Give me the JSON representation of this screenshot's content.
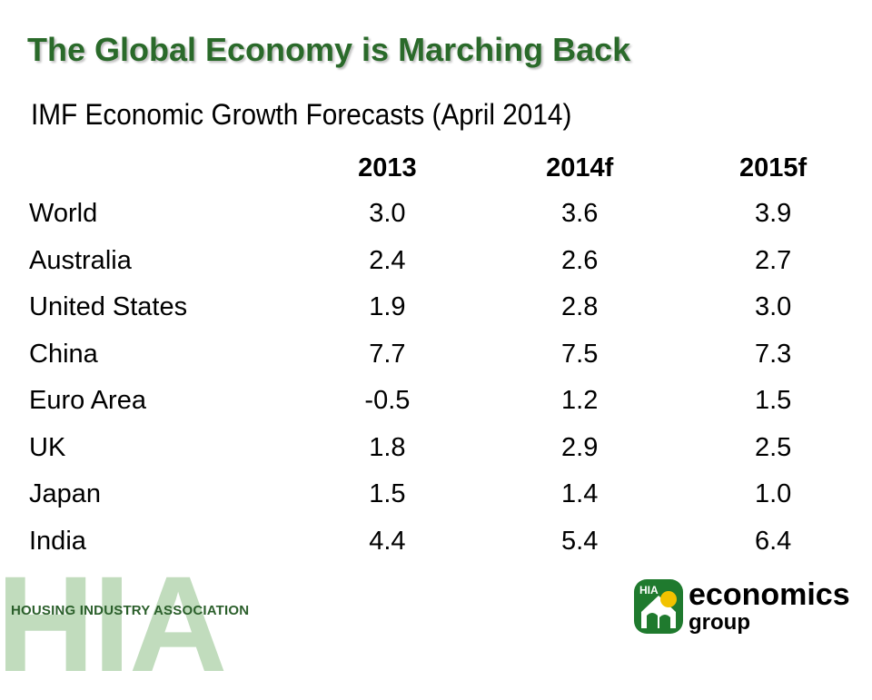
{
  "slide": {
    "title": "The Global Economy is Marching Back",
    "table_heading": "IMF Economic Growth Forecasts (April 2014)"
  },
  "table": {
    "columns": [
      "",
      "2013",
      "2014f",
      "2015f"
    ],
    "rows": [
      {
        "region": "World",
        "v2013": "3.0",
        "v2014f": "3.6",
        "v2015f": "3.9"
      },
      {
        "region": "Australia",
        "v2013": "2.4",
        "v2014f": "2.6",
        "v2015f": "2.7"
      },
      {
        "region": "United States",
        "v2013": "1.9",
        "v2014f": "2.8",
        "v2015f": "3.0"
      },
      {
        "region": "China",
        "v2013": "7.7",
        "v2014f": "7.5",
        "v2015f": "7.3"
      },
      {
        "region": "Euro Area",
        "v2013": "-0.5",
        "v2014f": "1.2",
        "v2015f": "1.5"
      },
      {
        "region": "UK",
        "v2013": "1.8",
        "v2014f": "2.9",
        "v2015f": "2.5"
      },
      {
        "region": "Japan",
        "v2013": "1.5",
        "v2014f": "1.4",
        "v2015f": "1.0"
      },
      {
        "region": "India",
        "v2013": "4.4",
        "v2014f": "5.4",
        "v2015f": "6.4"
      }
    ]
  },
  "footer": {
    "watermark": "HIA",
    "association_name": "HOUSING INDUSTRY ASSOCIATION",
    "logo_badge_text": "HIA",
    "logo_line1": "economics",
    "logo_line2": "group"
  },
  "colors": {
    "title_green": "#2a6a2a",
    "watermark_green": "#b7d6b2",
    "logo_green": "#1f7a2e",
    "logo_yellow": "#f2c200"
  }
}
